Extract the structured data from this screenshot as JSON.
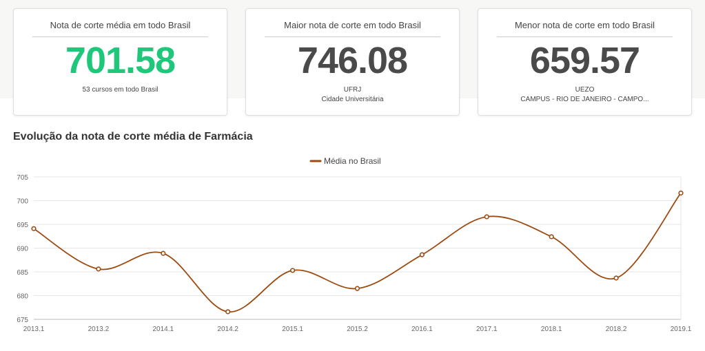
{
  "cards": [
    {
      "title": "Nota de corte média em todo Brasil",
      "value": "701.58",
      "sub1": "53 cursos em todo Brasil",
      "sub2": ""
    },
    {
      "title": "Maior nota de corte em todo Brasil",
      "value": "746.08",
      "sub1": "UFRJ",
      "sub2": "Cidade Universitária"
    },
    {
      "title": "Menor nota de corte em todo Brasil",
      "value": "659.57",
      "sub1": "UEZO",
      "sub2": "CAMPUS - RIO DE JANEIRO - CAMPO..."
    }
  ],
  "colors": {
    "highlight_value": "#1fc77a",
    "series": "#9c4a10"
  },
  "section_title": "Evolução da nota de corte média de Farmácia",
  "chart_data": {
    "type": "line",
    "title": "",
    "xlabel": "",
    "ylabel": "",
    "legend_position": "top-center",
    "grid": true,
    "categories": [
      "2013.1",
      "2013.2",
      "2014.1",
      "2014.2",
      "2015.1",
      "2015.2",
      "2016.1",
      "2017.1",
      "2018.1",
      "2018.2",
      "2019.1"
    ],
    "series": [
      {
        "name": "Média no Brasil",
        "color": "#9c4a10",
        "values": [
          694.1,
          685.6,
          688.9,
          676.6,
          685.3,
          681.5,
          688.6,
          696.6,
          692.4,
          683.7,
          701.6
        ]
      }
    ],
    "ylim": [
      675,
      705
    ],
    "yticks": [
      675,
      680,
      685,
      690,
      695,
      700,
      705
    ]
  }
}
